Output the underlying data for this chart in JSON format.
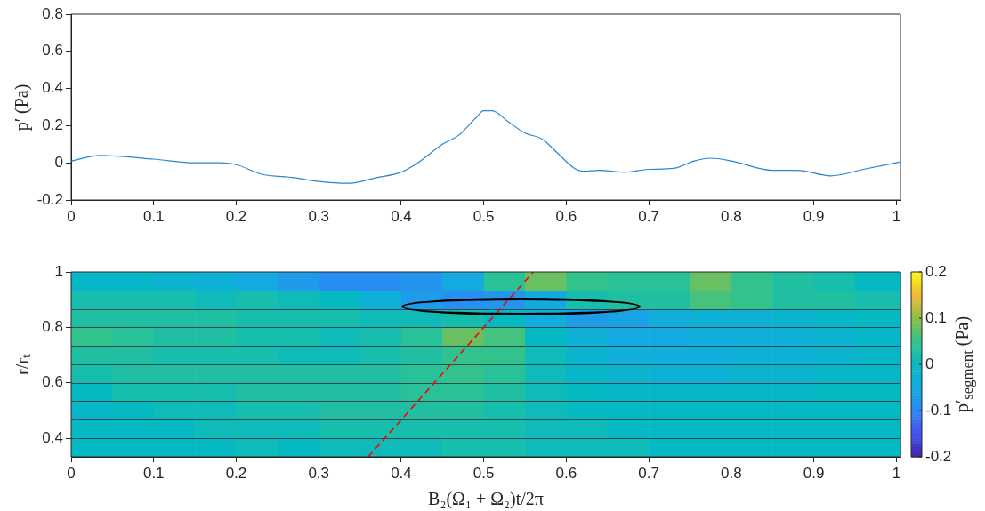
{
  "chart_data": [
    {
      "type": "line",
      "ylabel": "p′ (Pa)",
      "xlim": [
        0,
        1.005
      ],
      "xticks": [
        0,
        0.1,
        0.2,
        0.3,
        0.4,
        0.5,
        0.6,
        0.7,
        0.8,
        0.9,
        1
      ],
      "ylim": [
        -0.2,
        0.8
      ],
      "yticks": [
        -0.2,
        0,
        0.2,
        0.4,
        0.6,
        0.8
      ],
      "grid": false,
      "legend": false,
      "series": [
        {
          "color": "#2a86cf",
          "x": [
            0,
            0.035,
            0.1,
            0.15,
            0.18,
            0.2,
            0.23,
            0.27,
            0.3,
            0.335,
            0.37,
            0.4,
            0.42,
            0.45,
            0.47,
            0.49,
            0.5,
            0.51,
            0.53,
            0.55,
            0.57,
            0.59,
            0.61,
            0.62,
            0.64,
            0.67,
            0.7,
            0.73,
            0.755,
            0.775,
            0.8,
            0.85,
            0.88,
            0.92,
            0.96,
            1.005
          ],
          "values": [
            0.01,
            0.04,
            0.02,
            0.0,
            0.0,
            -0.01,
            -0.06,
            -0.08,
            -0.1,
            -0.11,
            -0.08,
            -0.05,
            0.0,
            0.1,
            0.15,
            0.24,
            0.28,
            0.28,
            0.22,
            0.16,
            0.13,
            0.05,
            -0.03,
            -0.045,
            -0.04,
            -0.05,
            -0.035,
            -0.03,
            0.01,
            0.025,
            0.01,
            -0.04,
            -0.04,
            -0.07,
            -0.035,
            0.005
          ]
        }
      ]
    },
    {
      "type": "heatmap",
      "xlabel": "B₂(Ω₁ + Ω₂)t/2π",
      "ylabel": "r/rₜ",
      "clabel": "p′$_{segment}$ (Pa)",
      "xlim": [
        0,
        1.005
      ],
      "xticks": [
        0,
        0.1,
        0.2,
        0.3,
        0.4,
        0.5,
        0.6,
        0.7,
        0.8,
        0.9,
        1
      ],
      "ylim": [
        0.333,
        1
      ],
      "yticks": [
        0.4,
        0.6,
        0.8,
        1
      ],
      "clim": [
        -0.2,
        0.2
      ],
      "cticks": [
        -0.2,
        -0.1,
        0,
        0.1,
        0.2
      ],
      "grid": false,
      "legend": false,
      "x": [
        0.025,
        0.075,
        0.125,
        0.175,
        0.225,
        0.275,
        0.325,
        0.375,
        0.425,
        0.475,
        0.525,
        0.575,
        0.625,
        0.675,
        0.725,
        0.775,
        0.825,
        0.875,
        0.925,
        0.975
      ],
      "y": [
        0.967,
        0.9,
        0.833,
        0.767,
        0.7,
        0.633,
        0.567,
        0.5,
        0.433,
        0.367
      ],
      "cells": [
        [
          -0.01,
          -0.01,
          -0.02,
          -0.03,
          -0.05,
          -0.07,
          -0.09,
          -0.09,
          -0.08,
          -0.05,
          0.04,
          0.08,
          0.05,
          0.04,
          0.04,
          0.08,
          0.05,
          0.03,
          0.02,
          0.0
        ],
        [
          0.02,
          0.02,
          0.02,
          0.01,
          0.02,
          0.01,
          0.0,
          -0.03,
          -0.07,
          -0.09,
          -0.08,
          -0.05,
          0.02,
          0.03,
          0.03,
          0.06,
          0.05,
          0.03,
          0.03,
          0.02
        ],
        [
          0.03,
          0.03,
          0.03,
          0.03,
          0.02,
          0.02,
          0.02,
          0.01,
          0.01,
          0.02,
          0.0,
          -0.04,
          -0.07,
          -0.06,
          -0.04,
          -0.03,
          -0.03,
          -0.02,
          -0.01,
          0.0
        ],
        [
          0.05,
          0.04,
          0.03,
          0.03,
          0.02,
          0.02,
          0.01,
          0.02,
          0.04,
          0.08,
          0.06,
          0.0,
          -0.03,
          -0.05,
          -0.05,
          -0.04,
          -0.04,
          -0.03,
          -0.02,
          -0.01
        ],
        [
          0.03,
          0.03,
          0.02,
          0.02,
          0.02,
          0.01,
          0.01,
          0.02,
          0.03,
          0.05,
          0.05,
          0.01,
          -0.02,
          -0.04,
          -0.04,
          -0.04,
          -0.03,
          -0.03,
          -0.02,
          -0.01
        ],
        [
          0.02,
          0.03,
          0.03,
          0.03,
          0.03,
          0.03,
          0.03,
          0.03,
          0.04,
          0.05,
          0.04,
          0.01,
          -0.01,
          -0.02,
          -0.03,
          -0.03,
          -0.02,
          -0.02,
          -0.01,
          -0.01
        ],
        [
          0.0,
          0.02,
          0.02,
          0.02,
          0.03,
          0.03,
          0.03,
          0.03,
          0.04,
          0.04,
          0.03,
          0.01,
          0.0,
          -0.01,
          -0.01,
          -0.01,
          -0.01,
          -0.01,
          0.0,
          0.0
        ],
        [
          -0.01,
          0.0,
          0.01,
          0.01,
          0.02,
          0.02,
          0.03,
          0.03,
          0.03,
          0.03,
          0.02,
          0.01,
          0.0,
          0.0,
          0.0,
          0.0,
          0.0,
          0.0,
          0.0,
          0.0
        ],
        [
          0.0,
          0.0,
          0.0,
          0.01,
          0.01,
          0.01,
          0.02,
          0.02,
          0.02,
          0.02,
          0.02,
          0.01,
          0.01,
          0.0,
          0.0,
          0.0,
          0.0,
          0.0,
          0.0,
          0.0
        ],
        [
          0.0,
          0.0,
          0.0,
          0.0,
          0.01,
          0.0,
          0.01,
          0.01,
          0.01,
          0.02,
          0.02,
          0.01,
          0.01,
          0.01,
          0.0,
          0.0,
          0.0,
          0.0,
          0.0,
          0.0
        ]
      ],
      "series": [
        {
          "type": "line",
          "color": "#ff0000",
          "line_style": "dashed",
          "x": [
            0.36,
            0.56
          ],
          "values": [
            0.333,
            1
          ]
        }
      ]
    }
  ]
}
